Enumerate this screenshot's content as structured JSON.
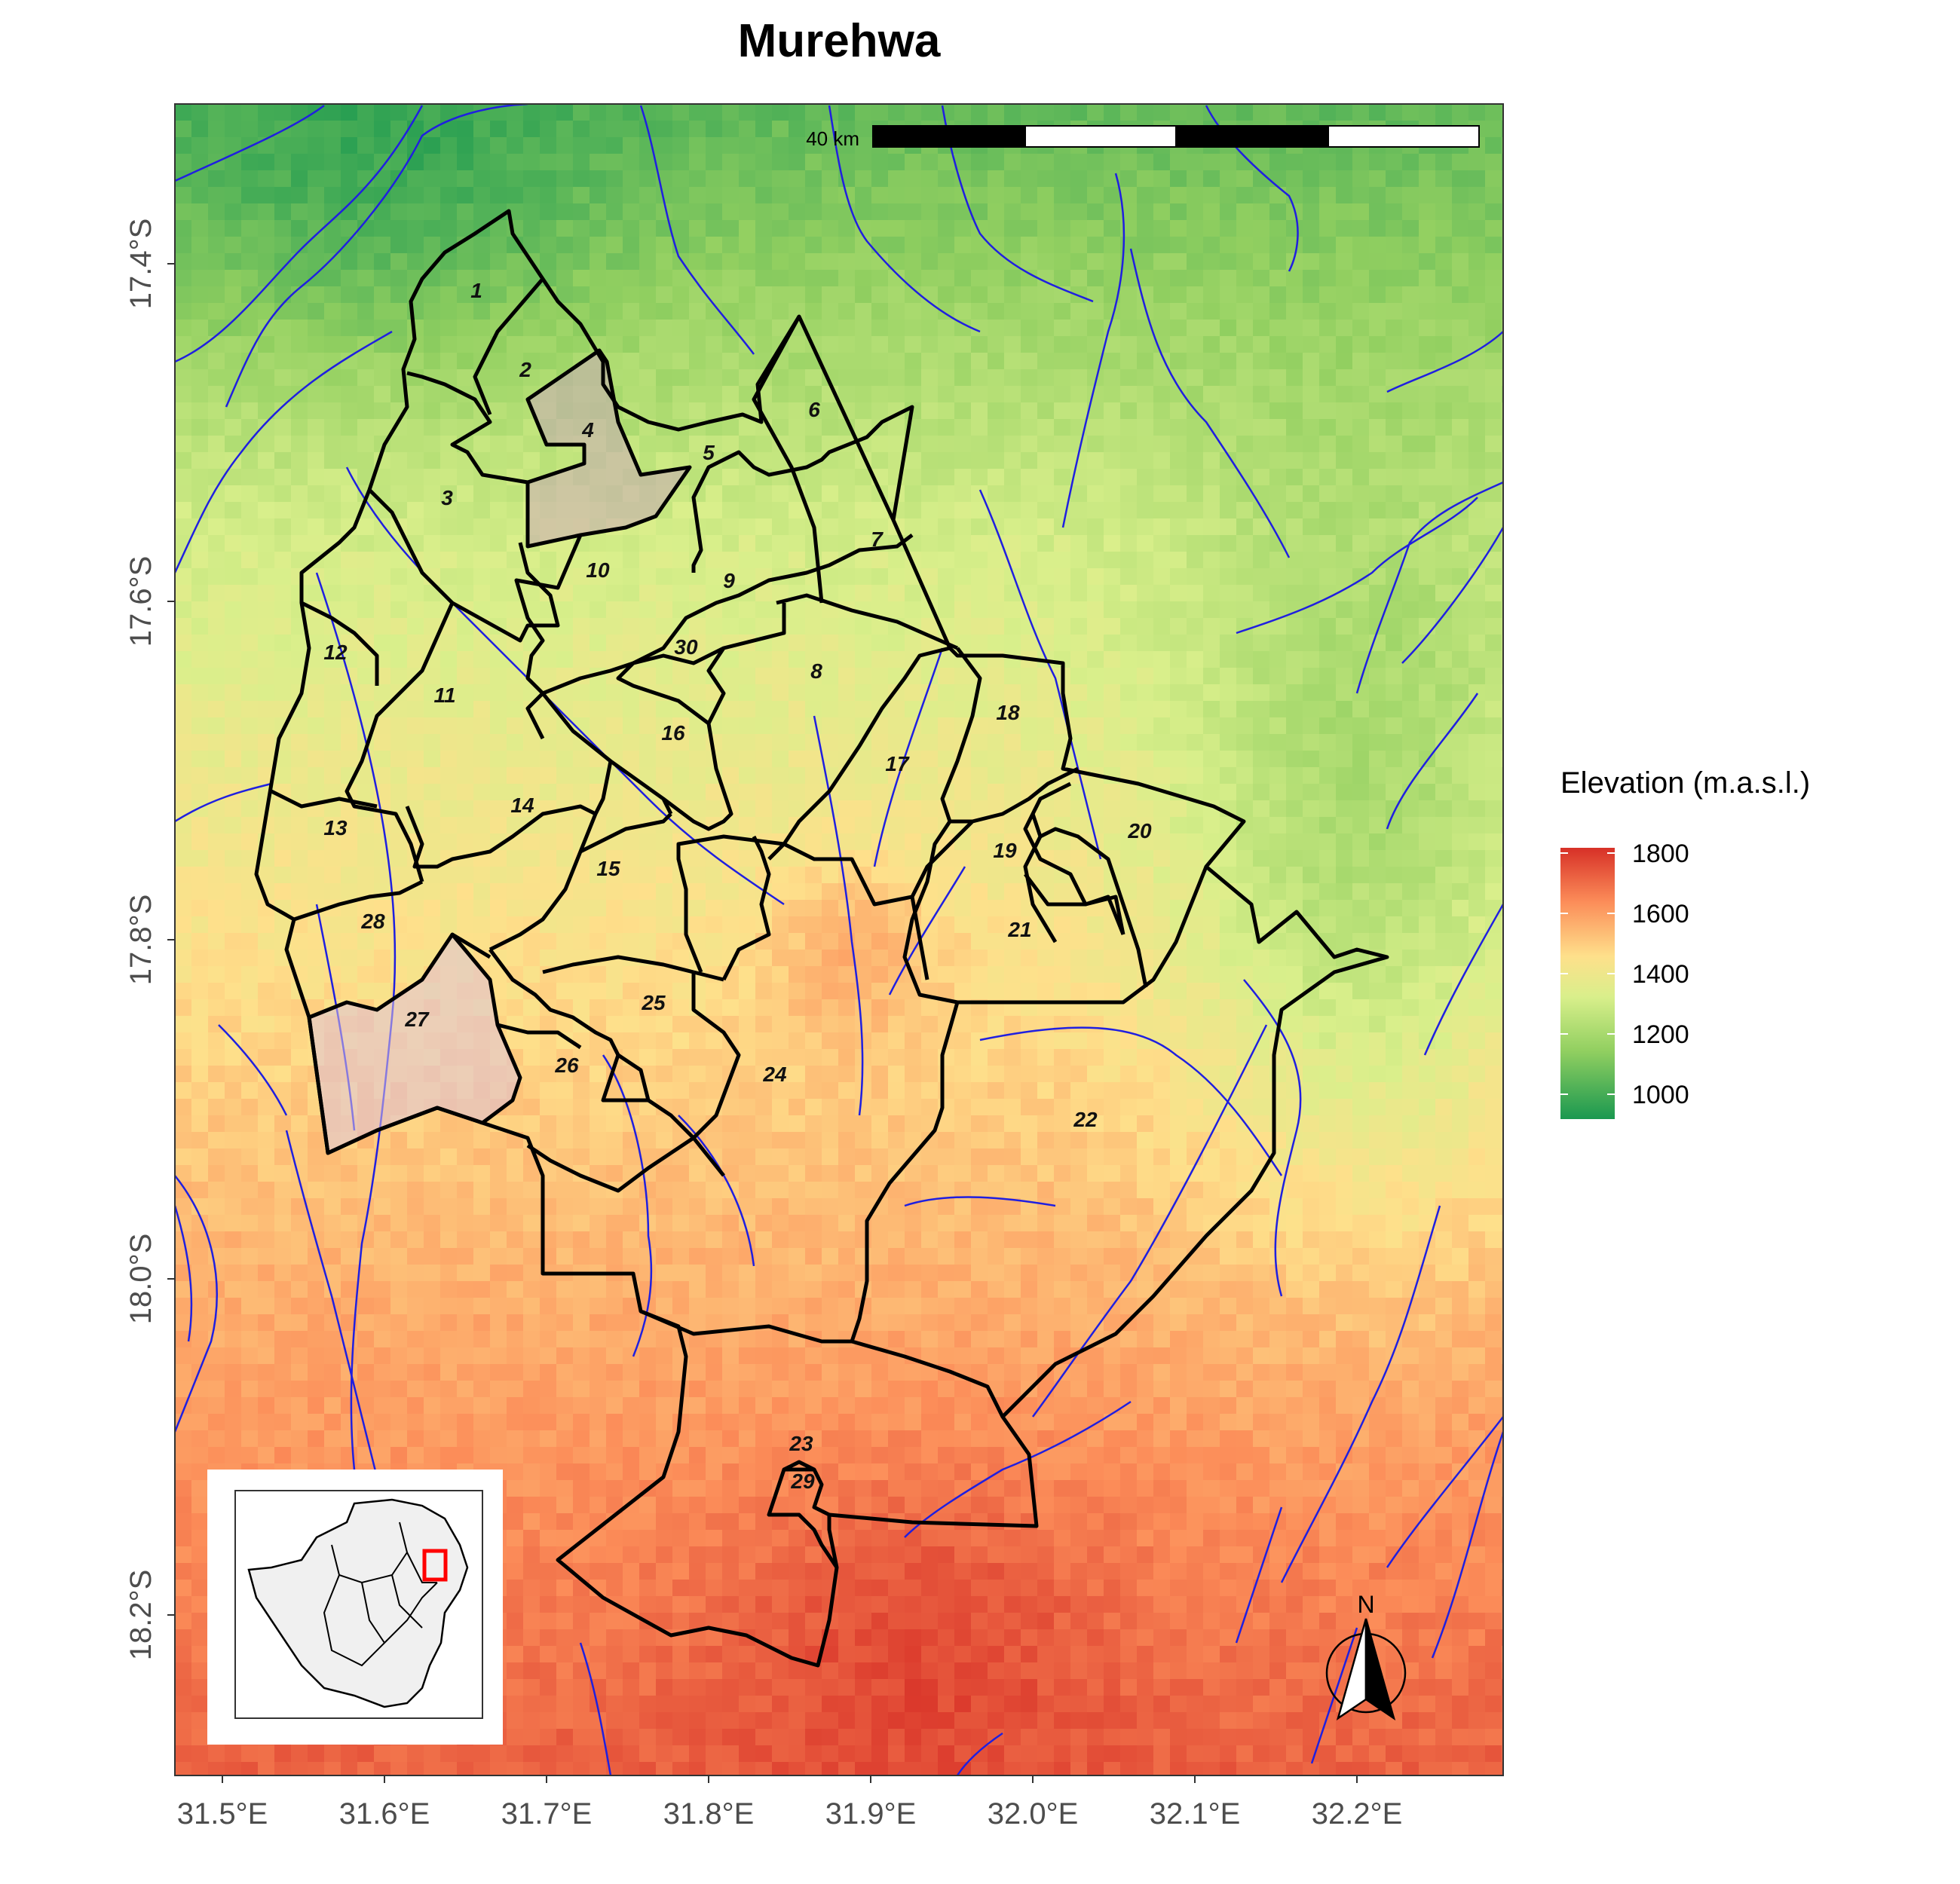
{
  "title": "Murehwa",
  "legend": {
    "title": "Elevation (m.a.s.l.)",
    "ticks": [
      "1800",
      "1600",
      "1400",
      "1200",
      "1000"
    ],
    "min": 950,
    "max": 1820,
    "colors": [
      "#1a9850",
      "#91cf60",
      "#d9ef8b",
      "#fee08b",
      "#fc8d59",
      "#d73027"
    ]
  },
  "axes": {
    "x_ticks": [
      "31.5°E",
      "31.6°E",
      "31.7°E",
      "31.8°E",
      "31.9°E",
      "32.0°E",
      "32.1°E",
      "32.2°E"
    ],
    "y_ticks": [
      "17.4°S",
      "17.6°S",
      "17.8°S",
      "18.0°S",
      "18.2°S"
    ],
    "lon_range": [
      31.46,
      32.28
    ],
    "lat_range": [
      17.3,
      18.3
    ]
  },
  "scale_bar": {
    "label": "40 km"
  },
  "north_arrow": {
    "label": "N"
  },
  "wards": {
    "labels": [
      "1",
      "2",
      "3",
      "4",
      "5",
      "6",
      "7",
      "8",
      "9",
      "10",
      "11",
      "12",
      "13",
      "14",
      "15",
      "16",
      "17",
      "18",
      "19",
      "20",
      "21",
      "22",
      "23",
      "24",
      "25",
      "26",
      "27",
      "28",
      "29",
      "30"
    ],
    "highlighted": [
      "4",
      "27"
    ]
  },
  "colors": {
    "boundary": "#000000",
    "river": "#1f1fe0",
    "highlight_fill": "#d9bfd9",
    "inset_box": "#ff0000",
    "inset_country": "#f0f0f0"
  }
}
